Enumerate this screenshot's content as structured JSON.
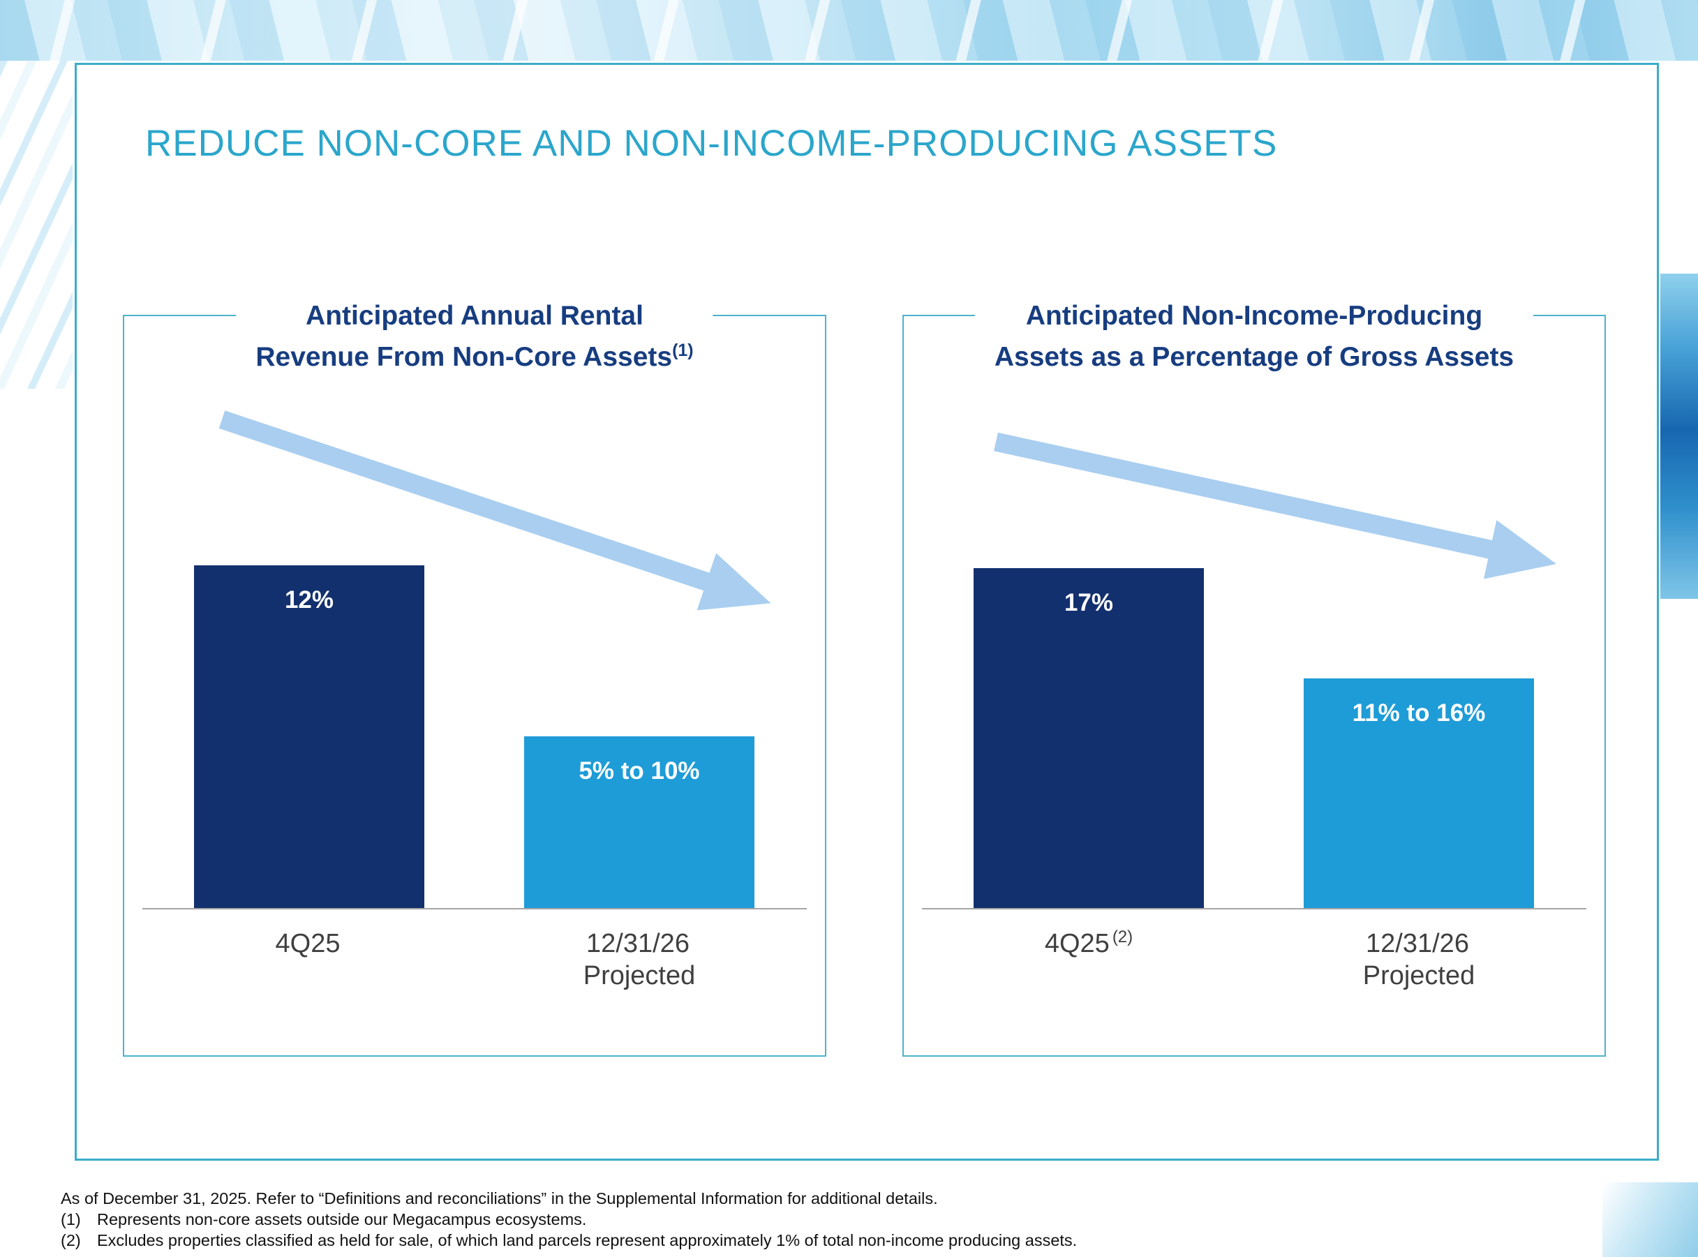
{
  "slide": {
    "title": "REDUCE NON-CORE AND NON-INCOME-PRODUCING ASSETS",
    "footnote_intro": "As of December 31, 2025. Refer to “Definitions and reconciliations” in the Supplemental Information for additional details.",
    "footnotes": [
      {
        "marker": "(1)",
        "text": "Represents non-core assets outside our Megacampus ecosystems."
      },
      {
        "marker": "(2)",
        "text": "Excludes properties classified as held for sale, of which land parcels represent approximately 1% of total non-income producing assets."
      }
    ]
  },
  "chart_data": [
    {
      "type": "bar",
      "title_lines": [
        "Anticipated Annual Rental",
        "Revenue From Non-Core Assets"
      ],
      "title_superscript": "(1)",
      "categories": [
        "4Q25",
        "12/31/26 Projected"
      ],
      "x_tick_labels": [
        {
          "line1": "4Q25",
          "superscript": "",
          "line2": ""
        },
        {
          "line1": "12/31/26",
          "superscript": "",
          "line2": "Projected"
        }
      ],
      "values": [
        12,
        6
      ],
      "value_labels": [
        "12%",
        "5% to 10%"
      ],
      "ylim": [
        0,
        14
      ],
      "bar_colors": [
        "#13306e",
        "#1e9cd7"
      ],
      "annotation": "downward trend arrow",
      "legend": "none",
      "grid": "off"
    },
    {
      "type": "bar",
      "title_lines": [
        "Anticipated Non-Income-Producing",
        "Assets as a Percentage of Gross Assets"
      ],
      "title_superscript": "",
      "categories": [
        "4Q25",
        "12/31/26 Projected"
      ],
      "x_tick_labels": [
        {
          "line1": "4Q25",
          "superscript": "(2)",
          "line2": ""
        },
        {
          "line1": "12/31/26",
          "superscript": "",
          "line2": "Projected"
        }
      ],
      "values": [
        17,
        11.5
      ],
      "value_labels": [
        "17%",
        "11% to 16%"
      ],
      "ylim": [
        0,
        20
      ],
      "bar_colors": [
        "#13306e",
        "#1e9cd7"
      ],
      "annotation": "downward trend arrow",
      "legend": "none",
      "grid": "off"
    }
  ],
  "colors": {
    "slide_title": "#2ba6cb",
    "chart_title": "#173d80",
    "content_border": "#3aadc9",
    "panel_border": "#4db3cd",
    "bar_dark": "#13306e",
    "bar_light": "#1e9cd7",
    "arrow": "#a9cef0",
    "axis_line": "#a5a5a5",
    "tick_label": "#3f3f3f"
  }
}
